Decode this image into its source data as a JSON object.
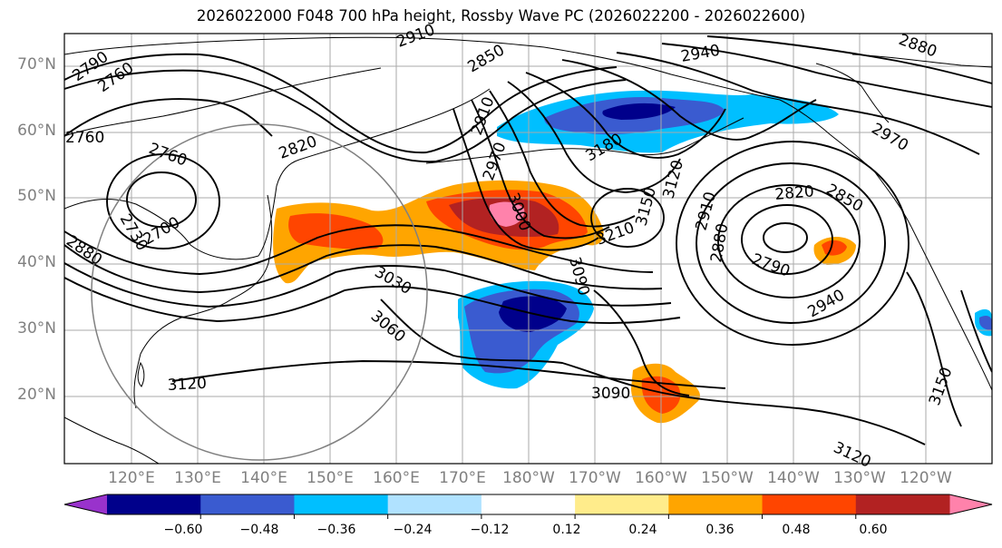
{
  "title": "2026022000 F048 700 hPa height, Rossby Wave PC (2026022200 - 2026022600)",
  "lat_labels": [
    "70°N",
    "60°N",
    "50°N",
    "40°N",
    "30°N",
    "20°N"
  ],
  "lon_labels": [
    "120°E",
    "130°E",
    "140°E",
    "150°E",
    "160°E",
    "170°E",
    "180°W",
    "170°W",
    "160°W",
    "150°W",
    "140°W",
    "130°W",
    "120°W"
  ],
  "contour_labels": [
    "2790",
    "2760",
    "2760",
    "2760",
    "2730",
    "2700",
    "2880",
    "2820",
    "2850",
    "2910",
    "2970",
    "3000",
    "3180",
    "2940",
    "2910",
    "2880",
    "3090",
    "3210",
    "3150",
    "3120",
    "2910",
    "2880",
    "2820",
    "2850",
    "2790",
    "2940",
    "2970",
    "3030",
    "3060",
    "3120",
    "3090",
    "3150",
    "3120"
  ],
  "colorbar": {
    "ticks": [
      "−0.60",
      "−0.48",
      "−0.36",
      "−0.24",
      "−0.12",
      "0.12",
      "0.24",
      "0.36",
      "0.48",
      "0.60"
    ],
    "colors": [
      "#9932cc",
      "#00008b",
      "#3a5bd0",
      "#00bfff",
      "#b0e2ff",
      "#ffffff",
      "#ffec8b",
      "#ffa500",
      "#ff4500",
      "#b22222",
      "#ff82ab"
    ]
  }
}
